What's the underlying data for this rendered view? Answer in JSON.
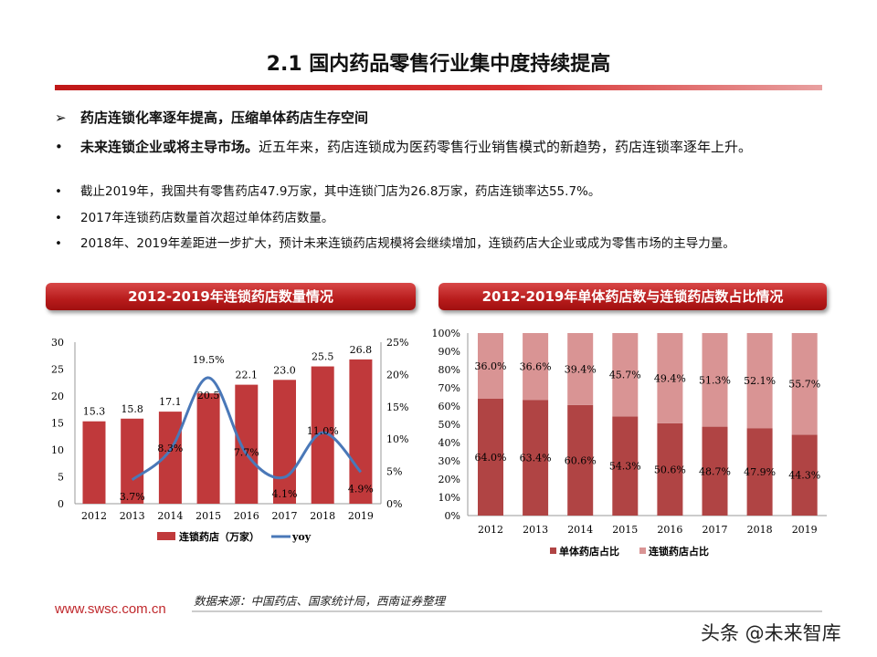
{
  "title": "2.1 国内药品零售行业集中度持续提高",
  "bullets": [
    {
      "marker": "➢",
      "bold": "药店连锁化率逐年提高，压缩单体药店生存空间",
      "text": ""
    },
    {
      "marker": "•",
      "bold": "未来连锁企业或将主导市场。",
      "text": "近五年来，药店连锁成为医药零售行业销售模式的新趋势，药店连锁率逐年上升。"
    },
    {
      "marker": "•",
      "bold": "",
      "text": "截止2019年，我国共有零售药店47.9万家，其中连锁门店为26.8万家，药店连锁率达55.7%。"
    },
    {
      "marker": "•",
      "bold": "",
      "text": "2017年连锁药店数量首次超过单体药店数量。"
    },
    {
      "marker": "•",
      "bold": "",
      "text": "2018年、2019年差距进一步扩大，预计未来连锁药店规模将会继续增加，连锁药店大企业或成为零售市场的主导力量。"
    }
  ],
  "chart_data": [
    {
      "type": "bar",
      "title": "2012-2019年连锁药店数量情况",
      "categories": [
        "2012",
        "2013",
        "2014",
        "2015",
        "2016",
        "2017",
        "2018",
        "2019"
      ],
      "series": [
        {
          "name": "连锁药店（万家）",
          "type": "bar",
          "axis": "left",
          "values": [
            15.3,
            15.8,
            17.1,
            20.5,
            22.1,
            23.0,
            25.5,
            26.8
          ],
          "labels": [
            "15.3",
            "15.8",
            "17.1",
            "20.5",
            "22.1",
            "23.0",
            "25.5",
            "26.8"
          ],
          "color": "#c0393b"
        },
        {
          "name": "yoy",
          "type": "line",
          "axis": "right",
          "values": [
            null,
            3.7,
            8.3,
            19.5,
            7.7,
            4.1,
            11.0,
            4.9
          ],
          "labels": [
            "",
            "3.7%",
            "8.3%",
            "19.5%",
            "7.7%",
            "4.1%",
            "11.0%",
            "4.9%"
          ],
          "color": "#4a78b8"
        }
      ],
      "ylim": [
        0,
        30
      ],
      "yticks": [
        "0",
        "5",
        "10",
        "15",
        "20",
        "25",
        "30"
      ],
      "y2lim": [
        0,
        25
      ],
      "y2ticks": [
        "0%",
        "5%",
        "10%",
        "15%",
        "20%",
        "25%"
      ],
      "legend": "bottom",
      "grid": false
    },
    {
      "type": "bar",
      "stacked": true,
      "title": "2012-2019年单体药店数与连锁药店数占比情况",
      "categories": [
        "2012",
        "2013",
        "2014",
        "2015",
        "2016",
        "2017",
        "2018",
        "2019"
      ],
      "series": [
        {
          "name": "单体药店占比",
          "values": [
            64.0,
            63.4,
            60.6,
            54.3,
            50.6,
            48.7,
            47.9,
            44.3
          ],
          "color": "#b04444"
        },
        {
          "name": "连锁药店占比",
          "values": [
            36.0,
            36.6,
            39.4,
            45.7,
            49.4,
            51.3,
            52.1,
            55.7
          ],
          "color": "#d99494"
        }
      ],
      "ylim": [
        0,
        100
      ],
      "yticks": [
        "0%",
        "10%",
        "20%",
        "30%",
        "40%",
        "50%",
        "60%",
        "70%",
        "80%",
        "90%",
        "100%"
      ],
      "legend": "bottom",
      "grid": false
    }
  ],
  "footer": {
    "source": "数据来源：中国药店、国家统计局，西南证券整理",
    "url": "www.swsc.com.cn",
    "watermark": "头条 @未来智库"
  }
}
